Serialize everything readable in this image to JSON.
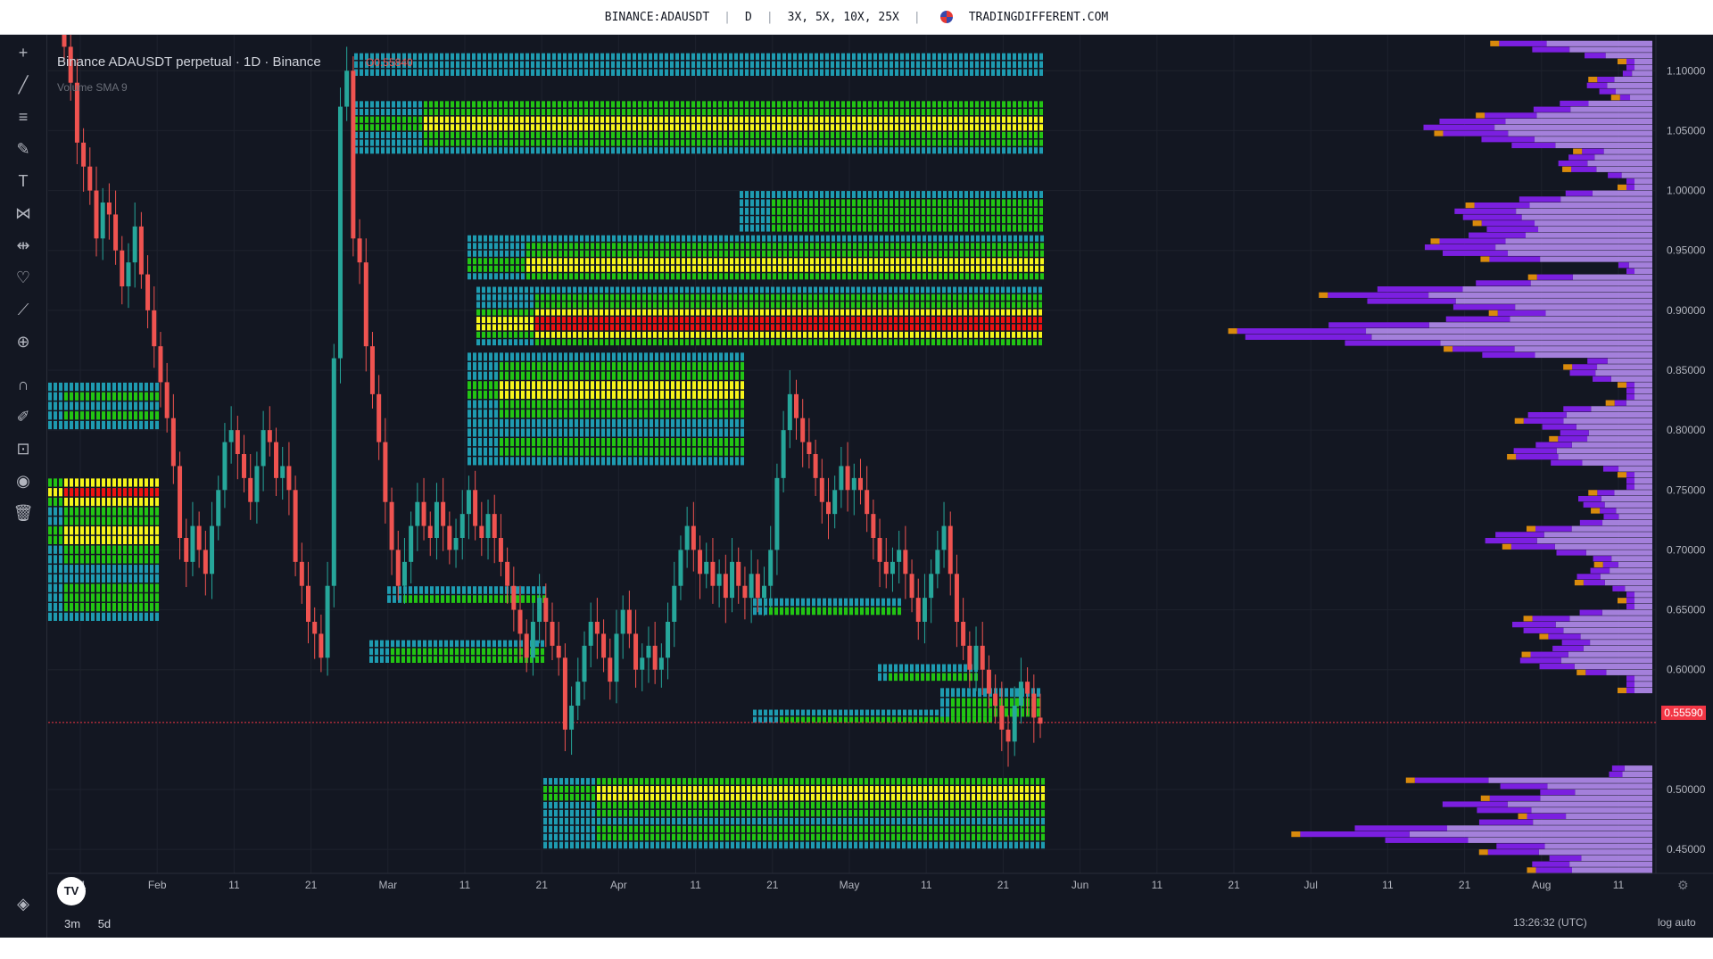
{
  "header": {
    "symbol": "BINANCE:ADAUSDT",
    "interval": "D",
    "leverage": "3X, 5X, 10X, 25X",
    "site": "TRADINGDIFFERENT.COM"
  },
  "legend": {
    "title": "Binance ADAUSDT perpetual · 1D · Binance",
    "ohlc_prefix": "O",
    "ohlc_value": "0.55840",
    "volume": "Volume SMA 9"
  },
  "footer": {
    "ranges": [
      "3m",
      "5d"
    ],
    "clock": "13:26:32 (UTC)",
    "log": "log",
    "auto": "auto",
    "brand": "@ Trading Different"
  },
  "colors": {
    "background": "#131722",
    "candle_up": "#26a69a",
    "candle_down": "#ef5350",
    "heat_low": "#1e9bb0",
    "heat_mid": "#22c414",
    "heat_high": "#f5f51a",
    "heat_max": "#ee1111",
    "profile_a": "#b58cf0",
    "profile_b": "#7b1fe0",
    "profile_c": "#d98a0c"
  },
  "chart_data": {
    "type": "candlestick",
    "x_ticks": [
      "21",
      "Feb",
      "11",
      "21",
      "Mar",
      "11",
      "21",
      "Apr",
      "11",
      "21",
      "May",
      "11",
      "21",
      "Jun",
      "11",
      "21",
      "Jul",
      "11",
      "21",
      "Aug",
      "11"
    ],
    "y_ticks": [
      "1.10000",
      "1.05000",
      "1.00000",
      "0.95000",
      "0.90000",
      "0.85000",
      "0.80000",
      "0.75000",
      "0.70000",
      "0.65000",
      "0.60000",
      "0.55590",
      "0.50000",
      "0.45000"
    ],
    "ylim": [
      0.43,
      1.13
    ],
    "last_price": "0.55590",
    "candles_close": [
      1.12,
      1.09,
      1.04,
      1.02,
      1.0,
      0.96,
      0.99,
      0.98,
      0.95,
      0.92,
      0.94,
      0.97,
      0.93,
      0.9,
      0.87,
      0.84,
      0.81,
      0.77,
      0.71,
      0.69,
      0.72,
      0.7,
      0.68,
      0.72,
      0.75,
      0.79,
      0.8,
      0.78,
      0.76,
      0.74,
      0.77,
      0.8,
      0.79,
      0.76,
      0.77,
      0.75,
      0.69,
      0.67,
      0.64,
      0.63,
      0.61,
      0.67,
      0.86,
      1.07,
      1.1,
      0.96,
      0.94,
      0.87,
      0.83,
      0.79,
      0.74,
      0.7,
      0.67,
      0.69,
      0.72,
      0.74,
      0.72,
      0.71,
      0.74,
      0.72,
      0.7,
      0.71,
      0.73,
      0.75,
      0.72,
      0.71,
      0.73,
      0.71,
      0.69,
      0.67,
      0.65,
      0.63,
      0.61,
      0.64,
      0.66,
      0.64,
      0.62,
      0.61,
      0.55,
      0.57,
      0.59,
      0.62,
      0.64,
      0.63,
      0.61,
      0.59,
      0.63,
      0.65,
      0.63,
      0.6,
      0.61,
      0.62,
      0.6,
      0.61,
      0.64,
      0.67,
      0.7,
      0.72,
      0.7,
      0.68,
      0.69,
      0.67,
      0.68,
      0.66,
      0.69,
      0.67,
      0.66,
      0.68,
      0.66,
      0.67,
      0.7,
      0.76,
      0.8,
      0.83,
      0.81,
      0.79,
      0.78,
      0.76,
      0.74,
      0.73,
      0.75,
      0.77,
      0.75,
      0.76,
      0.75,
      0.73,
      0.71,
      0.69,
      0.68,
      0.69,
      0.7,
      0.68,
      0.66,
      0.64,
      0.66,
      0.68,
      0.7,
      0.72,
      0.68,
      0.64,
      0.62,
      0.6,
      0.62,
      0.6,
      0.58,
      0.57,
      0.55,
      0.54,
      0.57,
      0.59,
      0.58,
      0.56,
      0.555
    ],
    "volume_profile": "right-side horizontal histogram",
    "heatmap_zones": "liquidation levels"
  }
}
